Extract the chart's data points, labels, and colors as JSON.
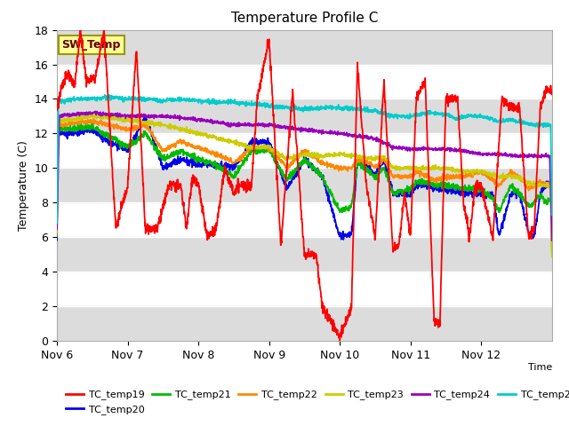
{
  "title": "Temperature Profile C",
  "xlabel": "Time",
  "ylabel": "Temperature (C)",
  "ylim": [
    0,
    18
  ],
  "xlim": [
    0,
    168
  ],
  "annotation_label": "SW_Temp",
  "colors": {
    "TC_temp19": "#FF0000",
    "TC_temp20": "#0000EE",
    "TC_temp21": "#00BB00",
    "TC_temp22": "#FF8800",
    "TC_temp23": "#CCCC00",
    "TC_temp24": "#9900BB",
    "TC_temp25": "#00CCCC"
  },
  "x_tick_labels": [
    "Nov 6",
    "Nov 7",
    "Nov 8",
    "Nov 9",
    "Nov 10",
    "Nov 11",
    "Nov 12"
  ],
  "x_tick_positions": [
    0,
    24,
    48,
    72,
    96,
    120,
    144
  ],
  "yticks": [
    0,
    2,
    4,
    6,
    8,
    10,
    12,
    14,
    16,
    18
  ],
  "figsize": [
    6.4,
    4.8
  ],
  "dpi": 100
}
